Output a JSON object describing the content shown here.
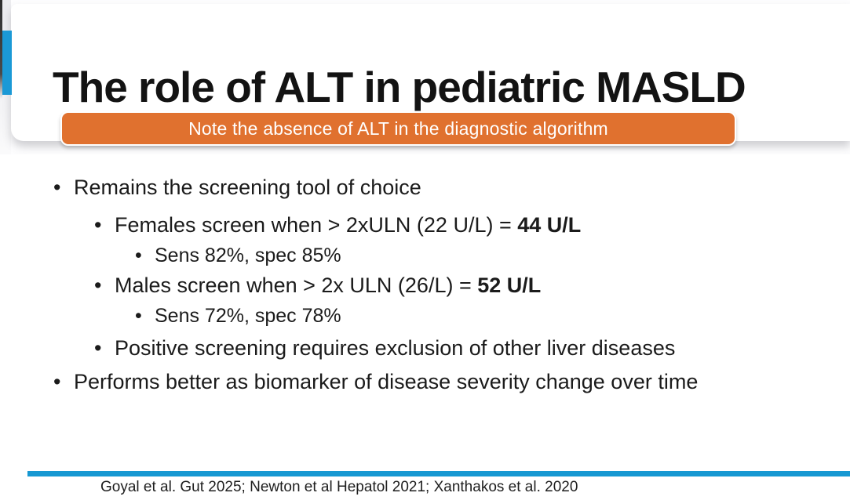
{
  "slide": {
    "title": "The role of ALT in pediatric MASLD",
    "banner": "Note the absence of ALT in the diagnostic algorithm",
    "bullets": [
      {
        "level": 1,
        "marker": "•",
        "text": "Remains the screening tool of choice"
      },
      {
        "level": 2,
        "marker": "•",
        "text": "Females screen when > 2xULN (22 U/L) = ",
        "bold": "44 U/L"
      },
      {
        "level": 3,
        "marker": "•",
        "text": "Sens 82%, spec 85%"
      },
      {
        "level": 2,
        "marker": "•",
        "text": "Males screen when > 2x ULN (26/L) = ",
        "bold": "52 U/L"
      },
      {
        "level": 3,
        "marker": "•",
        "text": "Sens 72%, spec 78%"
      },
      {
        "level": 2,
        "marker": "•",
        "text": "Positive screening requires exclusion of other liver diseases"
      },
      {
        "level": 1,
        "marker": "•",
        "text": "Performs better as biomarker of disease severity change over time"
      }
    ],
    "citation": "Goyal et al. Gut 2025; Newton et al Hepatol 2021; Xanthakos et al. 2020",
    "colors": {
      "accent_blue": "#1b99d6",
      "divider_blue": "#1798d2",
      "banner_orange": "#e0712f"
    }
  }
}
